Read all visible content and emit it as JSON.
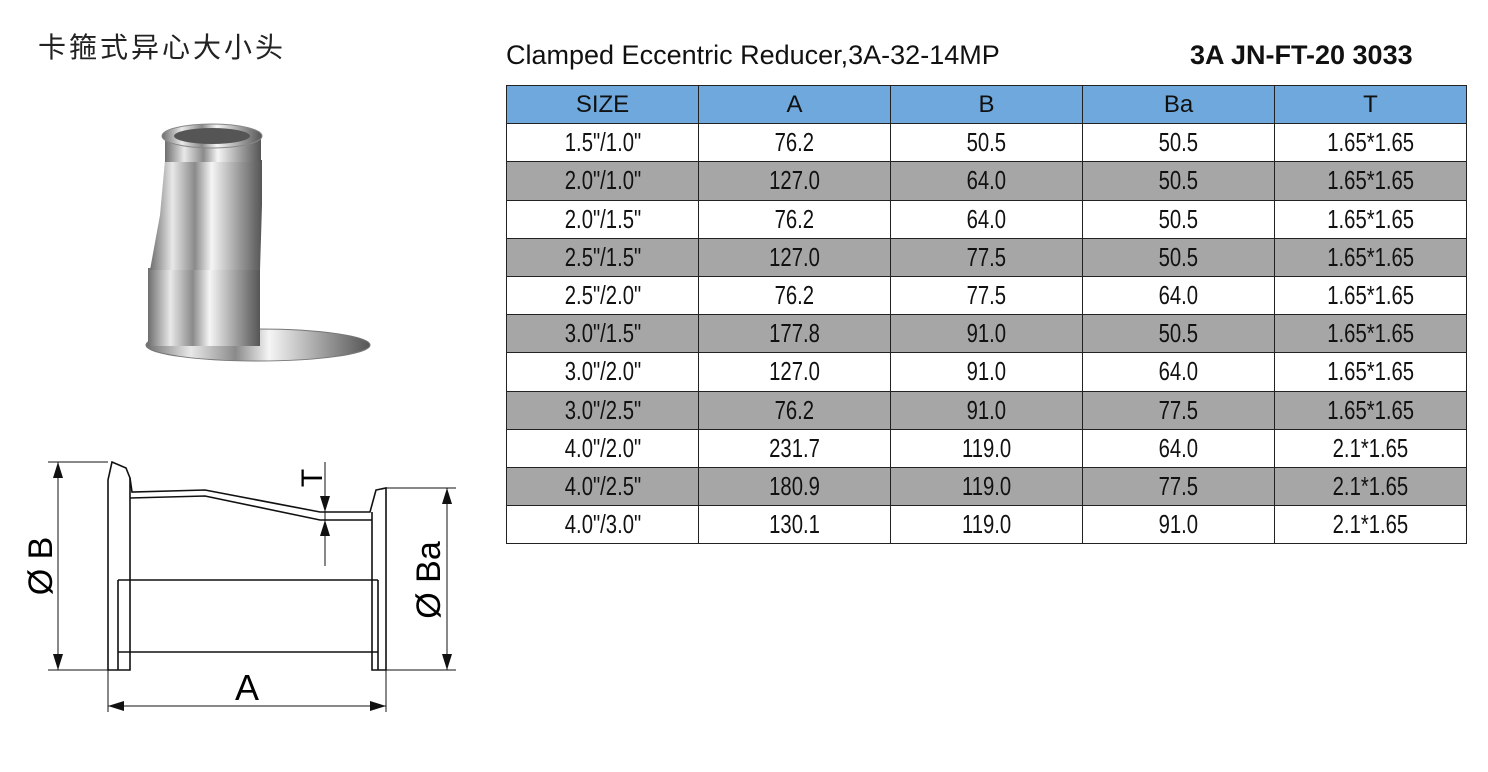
{
  "header": {
    "title_cn": "卡箍式异心大小头",
    "title": "Clamped Eccentric  Reducer,3A-32-14MP",
    "code": "3A  JN-FT-20 3033"
  },
  "diagram": {
    "labels": [
      "Ø B",
      "Ø Ba",
      "A",
      "T"
    ]
  },
  "table": {
    "columns": [
      "SIZE",
      "A",
      "B",
      "Ba",
      "T"
    ],
    "rows": [
      [
        "1.5\"/1.0\"",
        "76.2",
        "50.5",
        "50.5",
        "1.65*1.65"
      ],
      [
        "2.0\"/1.0\"",
        "127.0",
        "64.0",
        "50.5",
        "1.65*1.65"
      ],
      [
        "2.0\"/1.5\"",
        "76.2",
        "64.0",
        "50.5",
        "1.65*1.65"
      ],
      [
        "2.5\"/1.5\"",
        "127.0",
        "77.5",
        "50.5",
        "1.65*1.65"
      ],
      [
        "2.5\"/2.0\"",
        "76.2",
        "77.5",
        "64.0",
        "1.65*1.65"
      ],
      [
        "3.0\"/1.5\"",
        "177.8",
        "91.0",
        "50.5",
        "1.65*1.65"
      ],
      [
        "3.0\"/2.0\"",
        "127.0",
        "91.0",
        "64.0",
        "1.65*1.65"
      ],
      [
        "3.0\"/2.5\"",
        "76.2",
        "91.0",
        "77.5",
        "1.65*1.65"
      ],
      [
        "4.0\"/2.0\"",
        "231.7",
        "119.0",
        "64.0",
        "2.1*1.65"
      ],
      [
        "4.0\"/2.5\"",
        "180.9",
        "119.0",
        "77.5",
        "2.1*1.65"
      ],
      [
        "4.0\"/3.0\"",
        "130.1",
        "119.0",
        "91.0",
        "2.1*1.65"
      ]
    ]
  }
}
